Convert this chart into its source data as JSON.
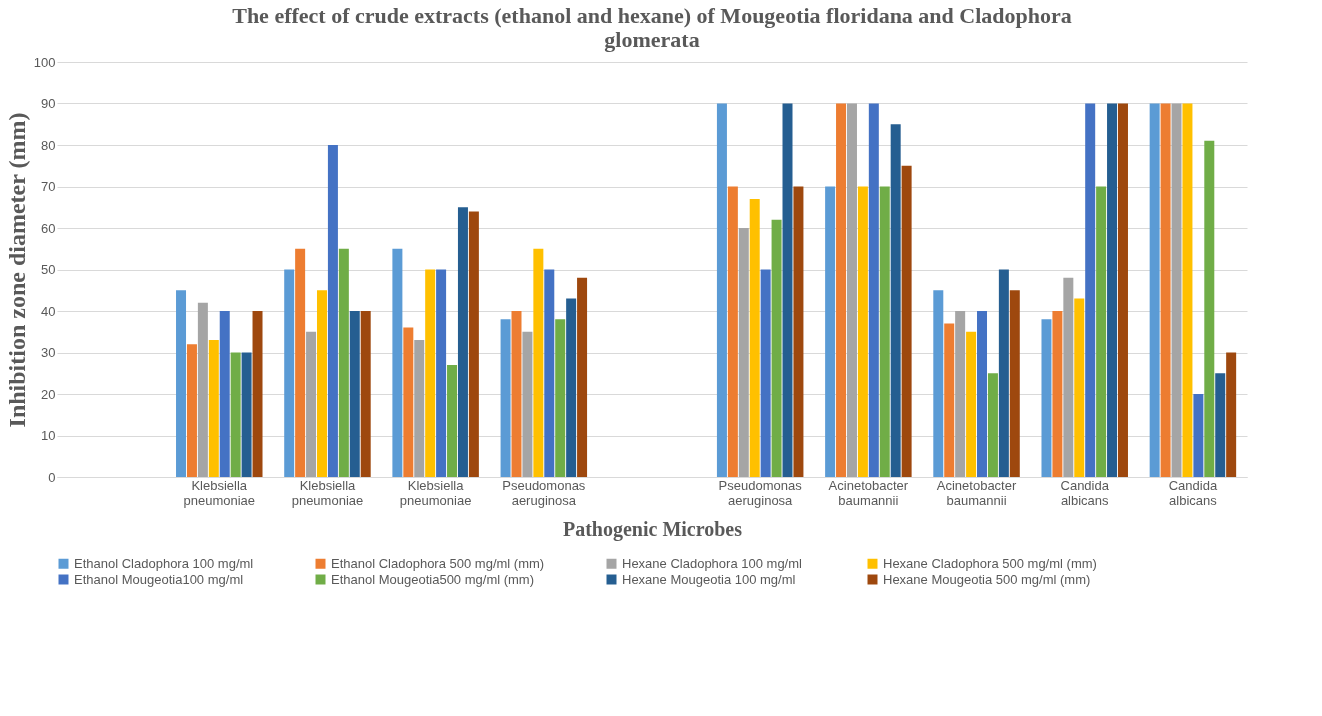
{
  "chart_data": {
    "type": "bar",
    "title": "The effect of crude extracts (ethanol and hexane) of Mougeotia  floridana and Cladophora glomerata",
    "xlabel": "Pathogenic Microbes",
    "ylabel": "Inhibition zone diameter (mm)",
    "categories": [
      null,
      "Klebsiella pneumoniae",
      "Klebsiella pneumoniae",
      "Klebsiella pneumoniae",
      "Pseudomonas aeruginosa",
      null,
      "Pseudomonas aeruginosa",
      "Acinetobacter baumannii",
      "Acinetobacter baumannii",
      "Candida albicans",
      "Candida albicans"
    ],
    "series": [
      {
        "name": "Ethanol Cladophora 100 mg/ml",
        "color": "#5b9bd5",
        "values": [
          null,
          45,
          50,
          55,
          38,
          null,
          90,
          70,
          45,
          38,
          90
        ]
      },
      {
        "name": "Ethanol Cladophora 500 mg/ml (mm)",
        "color": "#ed7d31",
        "values": [
          null,
          32,
          55,
          36,
          40,
          null,
          70,
          90,
          37,
          40,
          90
        ]
      },
      {
        "name": "Hexane Cladophora  100 mg/ml",
        "color": "#a5a5a5",
        "values": [
          null,
          42,
          35,
          33,
          35,
          null,
          60,
          90,
          40,
          48,
          90
        ]
      },
      {
        "name": "Hexane Cladophora 500 mg/ml (mm)",
        "color": "#ffc000",
        "values": [
          null,
          33,
          45,
          50,
          55,
          null,
          67,
          70,
          35,
          43,
          90
        ]
      },
      {
        "name": "Ethanol Mougeotia100 mg/ml",
        "color": "#4472c4",
        "values": [
          null,
          40,
          80,
          50,
          50,
          null,
          50,
          90,
          40,
          90,
          20
        ]
      },
      {
        "name": "Ethanol Mougeotia500 mg/ml (mm)",
        "color": "#70ad47",
        "values": [
          null,
          30,
          55,
          27,
          38,
          null,
          62,
          70,
          25,
          70,
          81
        ]
      },
      {
        "name": "Hexane Mougeotia 100 mg/ml",
        "color": "#255e91",
        "values": [
          null,
          30,
          40,
          65,
          43,
          null,
          90,
          85,
          50,
          90,
          25
        ]
      },
      {
        "name": "Hexane Mougeotia 500 mg/ml (mm)",
        "color": "#9e480e",
        "values": [
          null,
          40,
          40,
          64,
          48,
          null,
          70,
          75,
          45,
          90,
          30
        ]
      }
    ],
    "ylim": [
      0,
      100
    ],
    "yticks": [
      0,
      10,
      20,
      30,
      40,
      50,
      60,
      70,
      80,
      90,
      100
    ],
    "grid": "y",
    "legend": "bottom"
  }
}
